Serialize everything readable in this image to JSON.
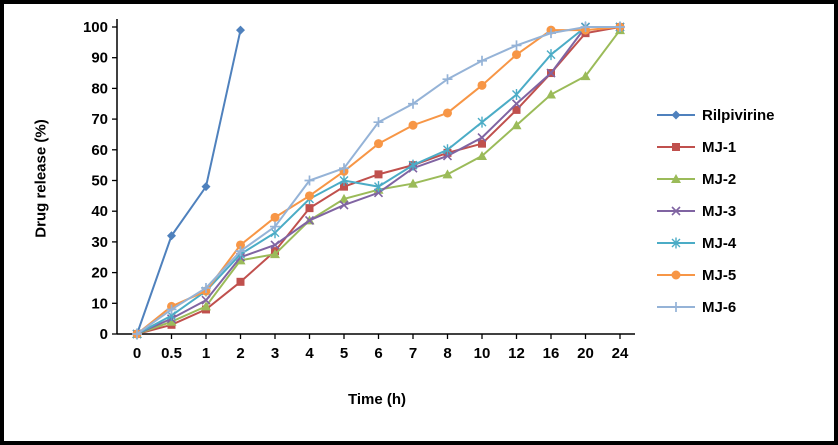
{
  "chart_data": {
    "type": "line",
    "title": "",
    "xlabel": "Time (h)",
    "ylabel": "Drug release (%)",
    "categories": [
      "0",
      "0.5",
      "1",
      "2",
      "3",
      "4",
      "5",
      "6",
      "7",
      "8",
      "10",
      "12",
      "16",
      "20",
      "24"
    ],
    "ylim": [
      0,
      100
    ],
    "y_ticks": [
      0,
      10,
      20,
      30,
      40,
      50,
      60,
      70,
      80,
      90,
      100
    ],
    "grid": false,
    "legend_position": "right",
    "series": [
      {
        "name": "Rilpivirine",
        "color": "#4F81BD",
        "marker": "diamond",
        "values": [
          0,
          32,
          48,
          99,
          null,
          null,
          null,
          null,
          null,
          null,
          null,
          null,
          null,
          null,
          null
        ]
      },
      {
        "name": "MJ-1",
        "color": "#C0504D",
        "marker": "square",
        "values": [
          0,
          3,
          8,
          17,
          27,
          41,
          48,
          52,
          55,
          59,
          62,
          73,
          85,
          98,
          100
        ]
      },
      {
        "name": "MJ-2",
        "color": "#9BBB59",
        "marker": "triangle",
        "values": [
          0,
          4,
          9,
          24,
          26,
          37,
          44,
          47,
          49,
          52,
          58,
          68,
          78,
          84,
          99
        ]
      },
      {
        "name": "MJ-3",
        "color": "#8064A2",
        "marker": "x",
        "values": [
          0,
          5,
          11,
          25,
          29,
          37,
          42,
          46,
          54,
          58,
          64,
          75,
          85,
          100,
          100
        ]
      },
      {
        "name": "MJ-4",
        "color": "#4BACC6",
        "marker": "star",
        "values": [
          0,
          6,
          14,
          26,
          33,
          44,
          50,
          48,
          55,
          60,
          69,
          78,
          91,
          100,
          100
        ]
      },
      {
        "name": "MJ-5",
        "color": "#F79646",
        "marker": "circle",
        "values": [
          0,
          9,
          14,
          29,
          38,
          45,
          53,
          62,
          68,
          72,
          81,
          91,
          99,
          99,
          100
        ]
      },
      {
        "name": "MJ-6",
        "color": "#95B3D7",
        "marker": "plus",
        "values": [
          0,
          8,
          15,
          27,
          35,
          50,
          54,
          69,
          75,
          83,
          89,
          94,
          98,
          100,
          100
        ]
      }
    ]
  }
}
